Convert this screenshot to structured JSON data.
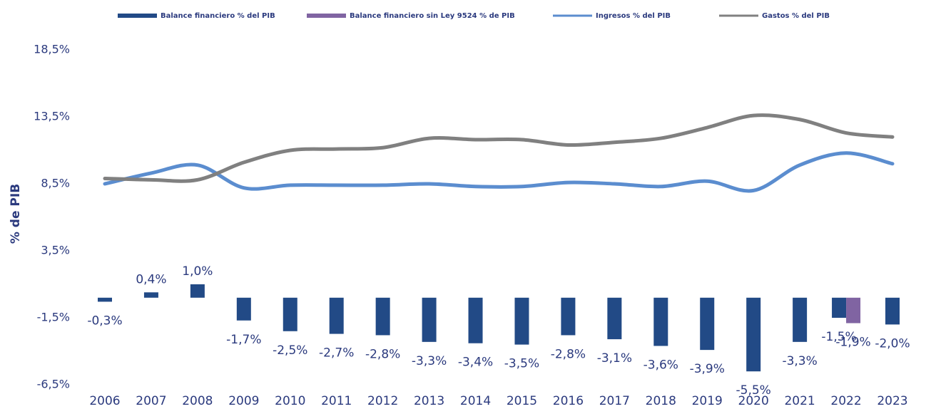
{
  "chart_data": {
    "type": "bar",
    "y_label": "% de PIB",
    "categories": [
      "2006",
      "2007",
      "2008",
      "2009",
      "2010",
      "2011",
      "2012",
      "2013",
      "2014",
      "2015",
      "2016",
      "2017",
      "2018",
      "2019",
      "2020",
      "2021",
      "2022",
      "2023"
    ],
    "series": [
      {
        "name": "Balance financiero % del PIB",
        "type": "bar",
        "color": "#224a86",
        "values": [
          -0.3,
          0.4,
          1.0,
          -1.7,
          -2.5,
          -2.7,
          -2.8,
          -3.3,
          -3.4,
          -3.5,
          -2.8,
          -3.1,
          -3.6,
          -3.9,
          -5.5,
          -3.3,
          -1.5,
          -2.0
        ],
        "value_labels": [
          "-0,3%",
          "0,4%",
          "1,0%",
          "-1,7%",
          "-2,5%",
          "-2,7%",
          "-2,8%",
          "-3,3%",
          "-3,4%",
          "-3,5%",
          "-2,8%",
          "-3,1%",
          "-3,6%",
          "-3,9%",
          "-5,5%",
          "-3,3%",
          "-1,5%",
          "-2,0%"
        ]
      },
      {
        "name": "Balance financiero sin Ley 9524 % de PIB",
        "type": "bar",
        "color": "#8064a2",
        "values": [
          null,
          null,
          null,
          null,
          null,
          null,
          null,
          null,
          null,
          null,
          null,
          null,
          null,
          null,
          null,
          null,
          -1.9,
          null
        ],
        "value_labels": [
          null,
          null,
          null,
          null,
          null,
          null,
          null,
          null,
          null,
          null,
          null,
          null,
          null,
          null,
          null,
          null,
          "-1,9%",
          null
        ]
      },
      {
        "name": "Ingresos % del PIB",
        "type": "line",
        "color": "#5b8dcf",
        "values": [
          8.5,
          9.3,
          9.9,
          8.2,
          8.4,
          8.4,
          8.4,
          8.5,
          8.3,
          8.3,
          8.6,
          8.5,
          8.3,
          8.7,
          8.0,
          9.9,
          10.8,
          10.0
        ]
      },
      {
        "name": "Gastos % del PIB",
        "type": "line",
        "color": "#808080",
        "values": [
          8.9,
          8.8,
          8.8,
          10.1,
          11.0,
          11.1,
          11.2,
          11.9,
          11.8,
          11.8,
          11.4,
          11.6,
          11.9,
          12.7,
          13.6,
          13.3,
          12.3,
          12.0
        ]
      }
    ],
    "ylim": [
      -6.5,
      18.5
    ],
    "yticks": [
      {
        "value": -6.5,
        "label": "-6,5%"
      },
      {
        "value": -1.5,
        "label": "-1,5%"
      },
      {
        "value": 3.5,
        "label": "3,5%"
      },
      {
        "value": 8.5,
        "label": "8,5%"
      },
      {
        "value": 13.5,
        "label": "13,5%"
      },
      {
        "value": 18.5,
        "label": "18,5%"
      }
    ],
    "grid": false,
    "legend": "top"
  }
}
